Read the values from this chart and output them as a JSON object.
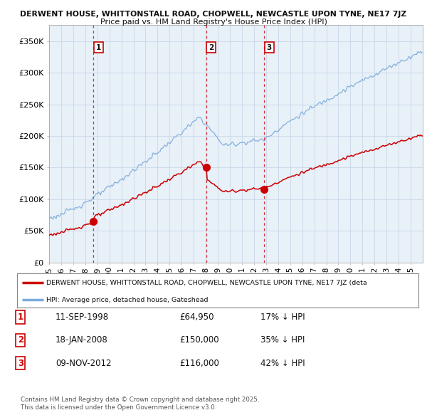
{
  "title_line1": "DERWENT HOUSE, WHITTONSTALL ROAD, CHOPWELL, NEWCASTLE UPON TYNE, NE17 7JZ",
  "title_line2": "Price paid vs. HM Land Registry's House Price Index (HPI)",
  "ylabel_ticks": [
    "£0",
    "£50K",
    "£100K",
    "£150K",
    "£200K",
    "£250K",
    "£300K",
    "£350K"
  ],
  "ytick_vals": [
    0,
    50000,
    100000,
    150000,
    200000,
    250000,
    300000,
    350000
  ],
  "ylim": [
    0,
    375000
  ],
  "xlim_start": 1995.0,
  "xlim_end": 2026.0,
  "property_color": "#cc0000",
  "hpi_color": "#7aabdb",
  "vline_color": "#cc0000",
  "grid_color": "#c8d8e8",
  "chart_bg": "#e8f0f8",
  "sale_dates": [
    1998.69,
    2008.05,
    2012.86
  ],
  "sale_prices": [
    64950,
    150000,
    116000
  ],
  "sale_labels": [
    "1",
    "2",
    "3"
  ],
  "legend_property_label": "DERWENT HOUSE, WHITTONSTALL ROAD, CHOPWELL, NEWCASTLE UPON TYNE, NE17 7JZ (deta",
  "legend_hpi_label": "HPI: Average price, detached house, Gateshead",
  "table_rows": [
    [
      "1",
      "11-SEP-1998",
      "£64,950",
      "17% ↓ HPI"
    ],
    [
      "2",
      "18-JAN-2008",
      "£150,000",
      "35% ↓ HPI"
    ],
    [
      "3",
      "09-NOV-2012",
      "£116,000",
      "42% ↓ HPI"
    ]
  ],
  "footer_line1": "Contains HM Land Registry data © Crown copyright and database right 2025.",
  "footer_line2": "This data is licensed under the Open Government Licence v3.0.",
  "background_color": "#ffffff"
}
